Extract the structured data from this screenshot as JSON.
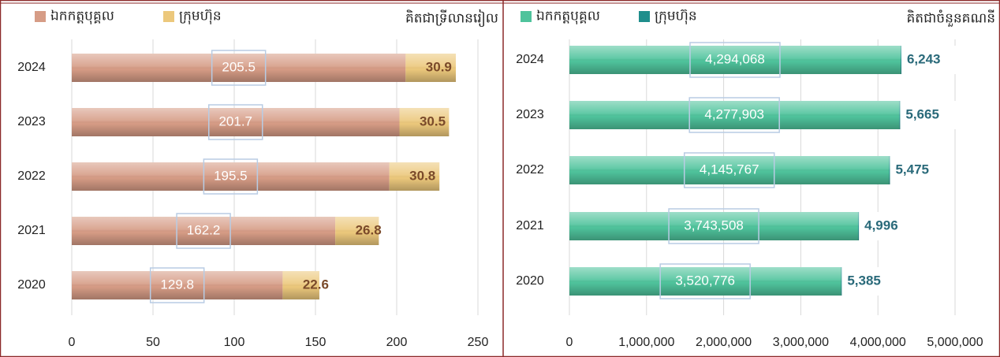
{
  "chart_data": [
    {
      "type": "bar",
      "stacked": true,
      "orientation": "horizontal",
      "subtitle": "គិតជាទ្រីលានរៀល",
      "categories": [
        "2024",
        "2023",
        "2022",
        "2021",
        "2020"
      ],
      "series": [
        {
          "name": "ឯកកត្តបុគ្គល",
          "color": "#d69c86",
          "values": [
            205.5,
            201.7,
            195.5,
            162.2,
            129.8
          ]
        },
        {
          "name": "ក្រុមហ៊ុន",
          "color": "#ecc87c",
          "values": [
            30.9,
            30.5,
            30.8,
            26.8,
            22.6
          ]
        }
      ],
      "xlim": [
        0,
        250
      ],
      "xticks": [
        0,
        50,
        100,
        150,
        200,
        250
      ],
      "grid": true,
      "legend": "top-left"
    },
    {
      "type": "bar",
      "stacked": true,
      "orientation": "horizontal",
      "subtitle": "គិតជាចំនួនគណនី",
      "categories": [
        "2024",
        "2023",
        "2022",
        "2021",
        "2020"
      ],
      "series": [
        {
          "name": "ឯកកត្តបុគ្គល",
          "color": "#4fc39c",
          "values": [
            4294068,
            4277903,
            4145767,
            3743508,
            3520776
          ],
          "value_labels": [
            "4,294,068",
            "4,277,903",
            "4,145,767",
            "3,743,508",
            "3,520,776"
          ]
        },
        {
          "name": "ក្រុមហ៊ុន",
          "color": "#1f8e8c",
          "values": [
            6243,
            5665,
            5475,
            4996,
            5385
          ],
          "value_labels": [
            "6,243",
            "5,665",
            "5,475",
            "4,996",
            "5,385"
          ]
        }
      ],
      "xlim": [
        0,
        5000000
      ],
      "xticks": [
        0,
        {
          "value": 1000000,
          "label": "1,000,000"
        },
        {
          "value": 2000000,
          "label": "2,000,000"
        },
        {
          "value": 3000000,
          "label": "3,000,000"
        },
        {
          "value": 4000000,
          "label": "4,000,000"
        },
        {
          "value": 5000000,
          "label": "5,000,000"
        }
      ],
      "grid": true,
      "legend": "top-left"
    }
  ]
}
